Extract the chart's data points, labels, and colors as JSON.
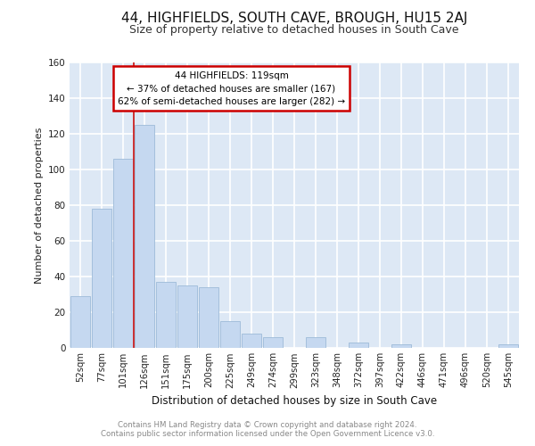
{
  "title": "44, HIGHFIELDS, SOUTH CAVE, BROUGH, HU15 2AJ",
  "subtitle": "Size of property relative to detached houses in South Cave",
  "xlabel": "Distribution of detached houses by size in South Cave",
  "ylabel": "Number of detached properties",
  "categories": [
    "52sqm",
    "77sqm",
    "101sqm",
    "126sqm",
    "151sqm",
    "175sqm",
    "200sqm",
    "225sqm",
    "249sqm",
    "274sqm",
    "299sqm",
    "323sqm",
    "348sqm",
    "372sqm",
    "397sqm",
    "422sqm",
    "446sqm",
    "471sqm",
    "496sqm",
    "520sqm",
    "545sqm"
  ],
  "values": [
    29,
    78,
    106,
    125,
    37,
    35,
    34,
    15,
    8,
    6,
    0,
    6,
    0,
    3,
    0,
    2,
    0,
    0,
    0,
    0,
    2
  ],
  "bar_color": "#c5d8f0",
  "bar_edge_color": "#9dbbd8",
  "background_color": "#dde8f5",
  "grid_color": "#ffffff",
  "red_line_x": 2.5,
  "annotation_title": "44 HIGHFIELDS: 119sqm",
  "annotation_line1": "← 37% of detached houses are smaller (167)",
  "annotation_line2": "62% of semi-detached houses are larger (282) →",
  "annotation_box_color": "#ffffff",
  "annotation_border_color": "#cc0000",
  "footer_line1": "Contains HM Land Registry data © Crown copyright and database right 2024.",
  "footer_line2": "Contains public sector information licensed under the Open Government Licence v3.0.",
  "ylim": [
    0,
    160
  ],
  "yticks": [
    0,
    20,
    40,
    60,
    80,
    100,
    120,
    140,
    160
  ],
  "title_fontsize": 11,
  "subtitle_fontsize": 9
}
